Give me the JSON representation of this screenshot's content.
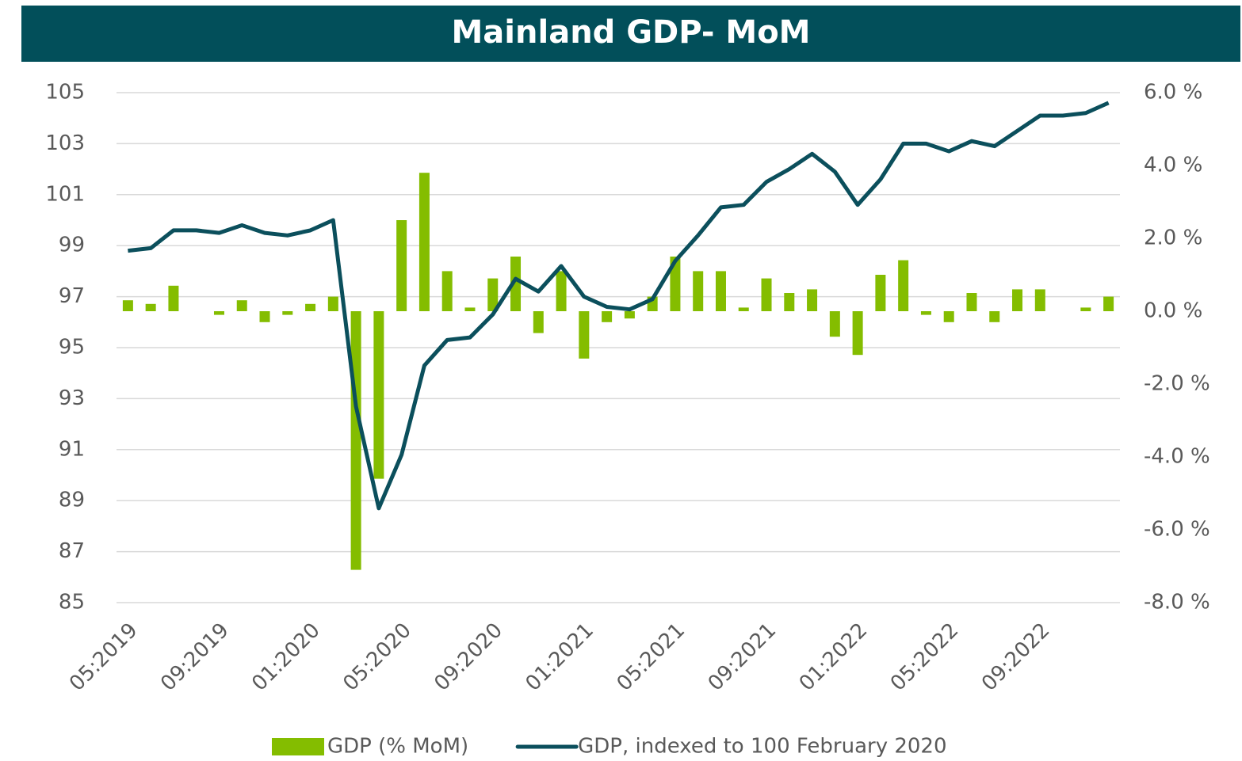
{
  "chart_data": {
    "type": "combo",
    "title": "Mainland GDP- MoM",
    "categories": [
      "05:2019",
      null,
      null,
      null,
      "09:2019",
      null,
      null,
      null,
      "01:2020",
      null,
      null,
      null,
      "05:2020",
      null,
      null,
      null,
      "09:2020",
      null,
      null,
      null,
      "01:2021",
      null,
      null,
      null,
      "05:2021",
      null,
      null,
      null,
      "09:2021",
      null,
      null,
      null,
      "01:2022",
      null,
      null,
      null,
      "05:2022",
      null,
      null,
      null,
      "09:2022",
      null,
      null,
      null
    ],
    "series": [
      {
        "name": "GDP (% MoM)",
        "type": "bar",
        "axis": "y2",
        "color": "#84bd00",
        "values": [
          0.3,
          0.2,
          0.7,
          0.0,
          -0.1,
          0.3,
          -0.3,
          -0.1,
          0.2,
          0.4,
          -7.1,
          -4.6,
          2.5,
          3.8,
          1.1,
          0.1,
          0.9,
          1.5,
          -0.6,
          1.1,
          -1.3,
          -0.3,
          -0.2,
          0.4,
          1.5,
          1.1,
          1.1,
          0.1,
          0.9,
          0.5,
          0.6,
          -0.7,
          -1.2,
          1.0,
          1.4,
          -0.1,
          -0.3,
          0.5,
          -0.3,
          0.6,
          0.6,
          0.0,
          0.1,
          0.4
        ]
      },
      {
        "name": "GDP, indexed to 100 February 2020",
        "type": "line",
        "axis": "y",
        "color": "#0b4f5c",
        "values": [
          98.8,
          98.9,
          99.6,
          99.6,
          99.5,
          99.8,
          99.5,
          99.4,
          99.6,
          100.0,
          92.7,
          88.7,
          90.8,
          94.3,
          95.3,
          95.4,
          96.3,
          97.7,
          97.2,
          98.2,
          97.0,
          96.6,
          96.5,
          96.9,
          98.4,
          99.4,
          100.5,
          100.6,
          101.5,
          102.0,
          102.6,
          101.9,
          100.6,
          101.6,
          103.0,
          103.0,
          102.7,
          103.1,
          102.9,
          103.5,
          104.1,
          104.1,
          104.2,
          104.6
        ]
      }
    ],
    "ylim": [
      85,
      105
    ],
    "yticks": [
      85,
      87,
      89,
      91,
      93,
      95,
      97,
      99,
      101,
      103,
      105
    ],
    "y2lim": [
      -8,
      6
    ],
    "y2ticks": [
      {
        "value": -8,
        "label": "-8.0 %"
      },
      {
        "value": -6,
        "label": "-6.0 %"
      },
      {
        "value": -4,
        "label": "-4.0 %"
      },
      {
        "value": -2,
        "label": "-2.0 %"
      },
      {
        "value": 0,
        "label": "0.0 %"
      },
      {
        "value": 2,
        "label": "2.0 %"
      },
      {
        "value": 4,
        "label": "4.0 %"
      },
      {
        "value": 6,
        "label": "6.0 %"
      }
    ],
    "grid": true,
    "legend": "bottom"
  }
}
